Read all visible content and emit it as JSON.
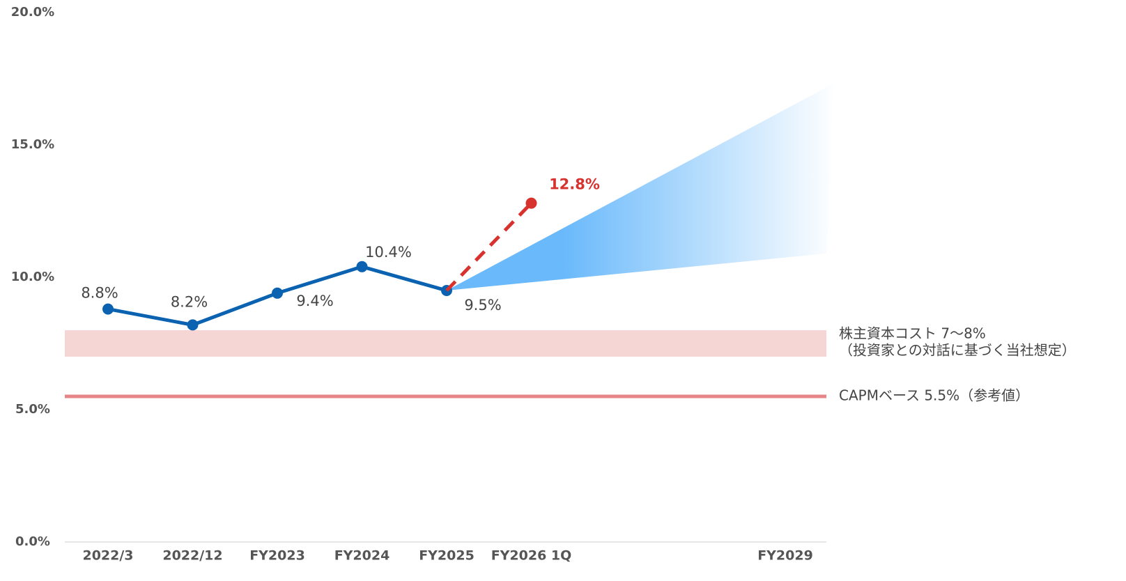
{
  "chart_data": {
    "type": "line",
    "categories": [
      "2022/3",
      "2022/12",
      "FY2023",
      "FY2024",
      "FY2025",
      "FY2026 1Q",
      null,
      null,
      "FY2029"
    ],
    "ylim": [
      0,
      20
    ],
    "yticks": [
      {
        "value": 0,
        "label": "0.0%"
      },
      {
        "value": 5,
        "label": "5.0%"
      },
      {
        "value": 10,
        "label": "10.0%"
      },
      {
        "value": 15,
        "label": "15.0%"
      },
      {
        "value": 20,
        "label": "20.0%"
      }
    ],
    "series": [
      {
        "color": "#0a62b0",
        "values": [
          8.8,
          8.2,
          9.4,
          10.4,
          9.5,
          null,
          null,
          null,
          null
        ],
        "value_labels": [
          "8.8%",
          "8.2%",
          "9.4%",
          "10.4%",
          "9.5%",
          null,
          null,
          null,
          null
        ]
      },
      {
        "color": "#d8322e",
        "dashed": true,
        "values": [
          null,
          null,
          null,
          null,
          9.5,
          12.8,
          null,
          null,
          null
        ],
        "value_labels": [
          null,
          null,
          null,
          null,
          null,
          "12.8%",
          null,
          null,
          null
        ]
      }
    ],
    "forecast_range": {
      "color": "#6ab9fb",
      "start": 9.5,
      "upper": 17.3,
      "lower": 10.9
    },
    "bands": [
      {
        "from": 7,
        "to": 8,
        "color": "#f6d5d5",
        "label": [
          "株主資本コスト 7～8%",
          "（投資家との対話に基づく当社想定）"
        ]
      }
    ],
    "lines": [
      {
        "value": 5.5,
        "color": "#e68585",
        "label": "CAPMベース 5.5%（参考値）"
      }
    ]
  }
}
